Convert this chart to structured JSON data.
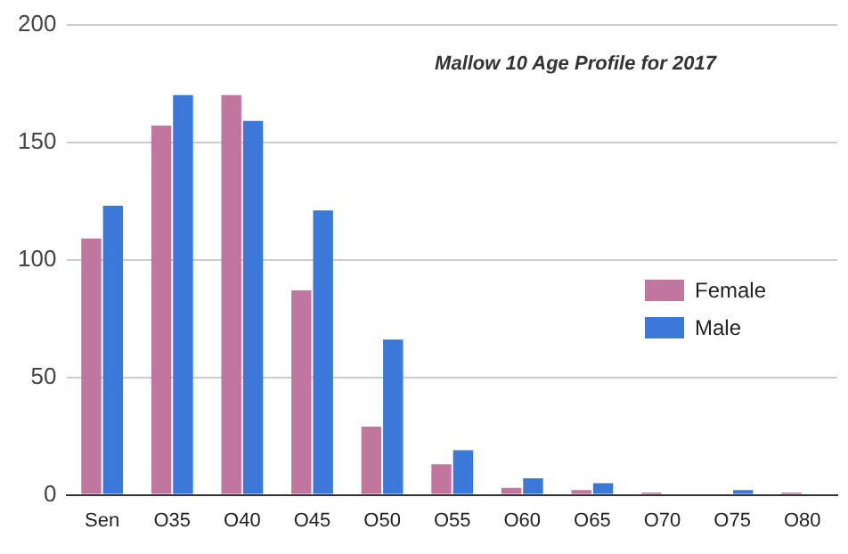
{
  "chart_data": {
    "type": "bar",
    "title": "Mallow 10 Age Profile for 2017",
    "categories": [
      "Sen",
      "O35",
      "O40",
      "O45",
      "O50",
      "O55",
      "O60",
      "O65",
      "O70",
      "O75",
      "O80"
    ],
    "series": [
      {
        "name": "Female",
        "color": "#c0769f",
        "values": [
          109,
          157,
          170,
          87,
          29,
          13,
          3,
          2,
          1,
          0,
          1
        ]
      },
      {
        "name": "Male",
        "color": "#3c78d8",
        "values": [
          123,
          170,
          159,
          121,
          66,
          19,
          7,
          5,
          0,
          2,
          0
        ]
      }
    ],
    "ylim": [
      0,
      200
    ],
    "yticks": [
      0,
      50,
      100,
      150,
      200
    ],
    "grid": "y",
    "legend": "right"
  }
}
